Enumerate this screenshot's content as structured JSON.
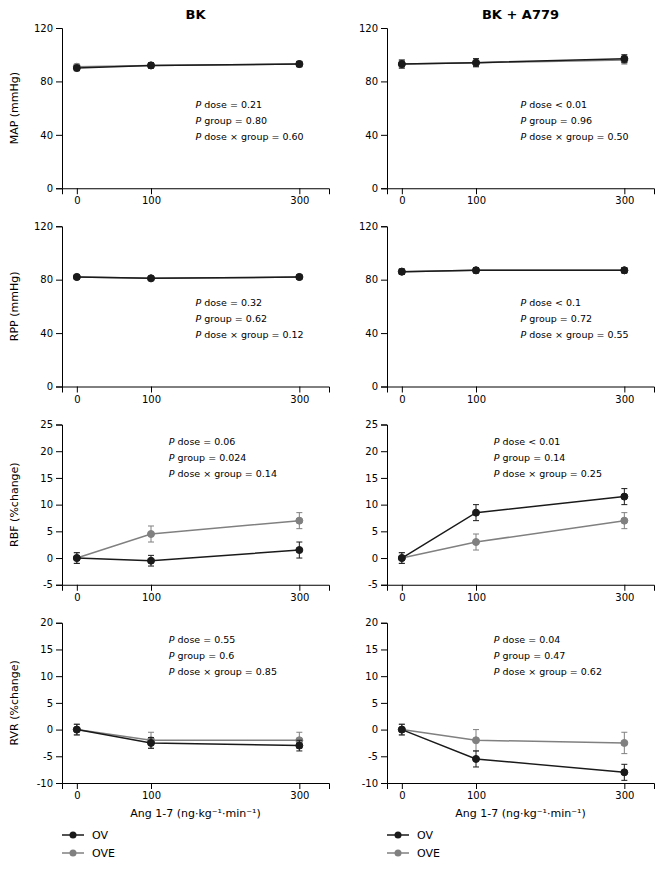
{
  "chart_data": [
    {
      "type": "line",
      "title": "BK",
      "ylabel": "MAP (mmHg)",
      "x": [
        0,
        100,
        300
      ],
      "xlim": [
        -20,
        340
      ],
      "xticks": [
        0,
        100,
        300
      ],
      "ylim": [
        0,
        120
      ],
      "yticks": [
        0,
        40,
        80,
        120
      ],
      "grid": false,
      "series": [
        {
          "name": "OV",
          "color": "#1a1a1a",
          "marker": "circle",
          "line_style": "solid",
          "values": [
            90,
            92,
            93
          ],
          "errors": [
            2,
            2,
            2
          ]
        },
        {
          "name": "OVE",
          "color": "#808080",
          "marker": "circle",
          "line_style": "solid",
          "values": [
            91,
            92,
            93
          ],
          "errors": [
            2,
            2,
            2
          ]
        }
      ],
      "annotations": [
        "P dose = 0.21",
        "P group = 0.80",
        "P dose × group = 0.60"
      ]
    },
    {
      "type": "line",
      "title": "BK + A779",
      "x": [
        0,
        100,
        300
      ],
      "xlim": [
        -20,
        340
      ],
      "xticks": [
        0,
        100,
        300
      ],
      "ylim": [
        0,
        120
      ],
      "yticks": [
        0,
        40,
        80,
        120
      ],
      "grid": false,
      "series": [
        {
          "name": "OV",
          "color": "#1a1a1a",
          "marker": "circle",
          "line_style": "solid",
          "values": [
            93,
            94,
            97
          ],
          "errors": [
            3,
            3,
            3
          ]
        },
        {
          "name": "OVE",
          "color": "#808080",
          "marker": "circle",
          "line_style": "solid",
          "values": [
            93,
            94,
            96
          ],
          "errors": [
            3,
            3,
            3
          ]
        }
      ],
      "annotations": [
        "P dose < 0.01",
        "P group = 0.96",
        "P dose × group = 0.50"
      ]
    },
    {
      "type": "line",
      "ylabel": "RPP (mmHg)",
      "x": [
        0,
        100,
        300
      ],
      "xlim": [
        -20,
        340
      ],
      "xticks": [
        0,
        100,
        300
      ],
      "ylim": [
        0,
        120
      ],
      "yticks": [
        0,
        40,
        80,
        120
      ],
      "grid": false,
      "series": [
        {
          "name": "OV",
          "color": "#1a1a1a",
          "marker": "circle",
          "line_style": "solid",
          "values": [
            82,
            81,
            82
          ],
          "errors": [
            1.5,
            1.5,
            1.5
          ]
        },
        {
          "name": "OVE",
          "color": "#808080",
          "marker": "circle",
          "line_style": "solid",
          "values": [
            82,
            81,
            82
          ],
          "errors": [
            1.5,
            1.5,
            1.5
          ]
        }
      ],
      "annotations": [
        "P dose = 0.32",
        "P group = 0.62",
        "P dose × group = 0.12"
      ]
    },
    {
      "type": "line",
      "x": [
        0,
        100,
        300
      ],
      "xlim": [
        -20,
        340
      ],
      "xticks": [
        0,
        100,
        300
      ],
      "ylim": [
        0,
        120
      ],
      "yticks": [
        0,
        40,
        80,
        120
      ],
      "grid": false,
      "series": [
        {
          "name": "OV",
          "color": "#1a1a1a",
          "marker": "circle",
          "line_style": "solid",
          "values": [
            86,
            87,
            87
          ],
          "errors": [
            2,
            2,
            2
          ]
        },
        {
          "name": "OVE",
          "color": "#808080",
          "marker": "circle",
          "line_style": "solid",
          "values": [
            86,
            87,
            87
          ],
          "errors": [
            2,
            2,
            2
          ]
        }
      ],
      "annotations": [
        "P dose < 0.1",
        "P group = 0.72",
        "P dose × group = 0.55"
      ]
    },
    {
      "type": "line",
      "ylabel": "RBF (%change)",
      "x": [
        0,
        100,
        300
      ],
      "xlim": [
        -20,
        340
      ],
      "xticks": [
        0,
        100,
        300
      ],
      "ylim": [
        -5,
        25
      ],
      "yticks": [
        -5,
        0,
        5,
        10,
        15,
        20,
        25
      ],
      "grid": false,
      "series": [
        {
          "name": "OV",
          "color": "#1a1a1a",
          "marker": "circle",
          "line_style": "solid",
          "values": [
            0,
            -0.5,
            1.5
          ],
          "errors": [
            1,
            1,
            1.5
          ]
        },
        {
          "name": "OVE",
          "color": "#808080",
          "marker": "circle",
          "line_style": "solid",
          "values": [
            0,
            4.5,
            7
          ],
          "errors": [
            1,
            1.5,
            1.5
          ]
        }
      ],
      "annotations": [
        "P dose = 0.06",
        "P group = 0.024",
        "P dose × group = 0.14"
      ]
    },
    {
      "type": "line",
      "x": [
        0,
        100,
        300
      ],
      "xlim": [
        -20,
        340
      ],
      "xticks": [
        0,
        100,
        300
      ],
      "ylim": [
        -5,
        25
      ],
      "yticks": [
        -5,
        0,
        5,
        10,
        15,
        20,
        25
      ],
      "grid": false,
      "series": [
        {
          "name": "OV",
          "color": "#1a1a1a",
          "marker": "circle",
          "line_style": "solid",
          "values": [
            0,
            8.5,
            11.5
          ],
          "errors": [
            1,
            1.5,
            1.5
          ]
        },
        {
          "name": "OVE",
          "color": "#808080",
          "marker": "circle",
          "line_style": "solid",
          "values": [
            0,
            3,
            7
          ],
          "errors": [
            1,
            1.5,
            1.5
          ]
        }
      ],
      "annotations": [
        "P dose < 0.01",
        "P group = 0.14",
        "P dose × group = 0.25"
      ]
    },
    {
      "type": "line",
      "ylabel": "RVR (%change)",
      "xlabel": "Ang 1-7 (ng·kg⁻¹·min⁻¹)",
      "x": [
        0,
        100,
        300
      ],
      "xlim": [
        -20,
        340
      ],
      "xticks": [
        0,
        100,
        300
      ],
      "ylim": [
        -10,
        20
      ],
      "yticks": [
        -10,
        -5,
        0,
        5,
        10,
        15,
        20
      ],
      "grid": false,
      "legend": "bottom",
      "series": [
        {
          "name": "OV",
          "color": "#1a1a1a",
          "marker": "circle",
          "line_style": "solid",
          "values": [
            0,
            -2.5,
            -3
          ],
          "errors": [
            1,
            1,
            1
          ]
        },
        {
          "name": "OVE",
          "color": "#808080",
          "marker": "circle",
          "line_style": "solid",
          "values": [
            0,
            -2,
            -2
          ],
          "errors": [
            1,
            1.5,
            1.5
          ]
        }
      ],
      "annotations": [
        "P dose = 0.55",
        "P group = 0.6",
        "P dose × group = 0.85"
      ]
    },
    {
      "type": "line",
      "xlabel": "Ang 1-7 (ng·kg⁻¹·min⁻¹)",
      "x": [
        0,
        100,
        300
      ],
      "xlim": [
        -20,
        340
      ],
      "xticks": [
        0,
        100,
        300
      ],
      "ylim": [
        -10,
        20
      ],
      "yticks": [
        -10,
        -5,
        0,
        5,
        10,
        15,
        20
      ],
      "grid": false,
      "legend": "bottom",
      "series": [
        {
          "name": "OV",
          "color": "#1a1a1a",
          "marker": "circle",
          "line_style": "solid",
          "values": [
            0,
            -5.5,
            -8
          ],
          "errors": [
            1,
            1.5,
            1.5
          ]
        },
        {
          "name": "OVE",
          "color": "#808080",
          "marker": "circle",
          "line_style": "solid",
          "values": [
            0,
            -2,
            -2.5
          ],
          "errors": [
            1,
            2,
            2
          ]
        }
      ],
      "annotations": [
        "P dose = 0.04",
        "P group = 0.47",
        "P dose × group = 0.62"
      ]
    }
  ]
}
